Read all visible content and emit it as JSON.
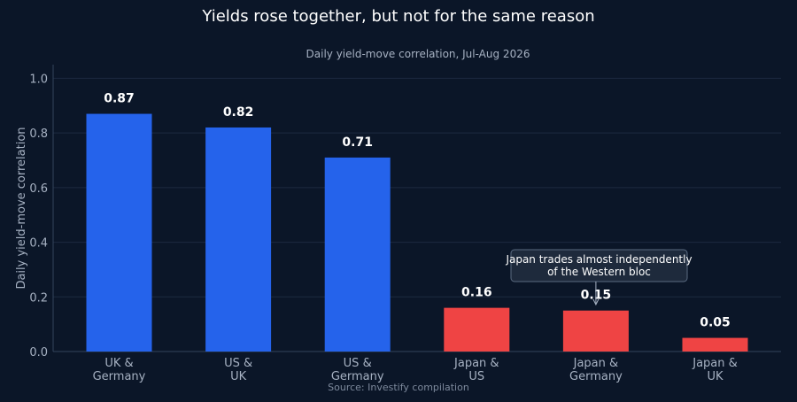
{
  "chart_data": {
    "type": "bar",
    "title": "Yields rose together, but not for the same reason",
    "subtitle": "Daily yield-move correlation, Jul-Aug 2026",
    "ylabel": "Daily yield-move correlation",
    "xlabel": "",
    "ylim": [
      0,
      1.05
    ],
    "yticks": [
      "0.0",
      "0.2",
      "0.4",
      "0.6",
      "0.8",
      "1.0"
    ],
    "grid": true,
    "categories": [
      [
        "UK &",
        "Germany"
      ],
      [
        "US &",
        "UK"
      ],
      [
        "US &",
        "Germany"
      ],
      [
        "Japan &",
        "US"
      ],
      [
        "Japan &",
        "Germany"
      ],
      [
        "Japan &",
        "UK"
      ]
    ],
    "values": [
      0.87,
      0.82,
      0.71,
      0.16,
      0.15,
      0.05
    ],
    "value_labels": [
      "0.87",
      "0.82",
      "0.71",
      "0.16",
      "0.15",
      "0.05"
    ],
    "colors": [
      "#2563eb",
      "#2563eb",
      "#2563eb",
      "#ef4444",
      "#ef4444",
      "#ef4444"
    ],
    "annotation": {
      "lines": [
        "Japan trades almost independently",
        "of the Western bloc"
      ],
      "target_index": 4
    },
    "source": "Source: Investify compilation"
  }
}
